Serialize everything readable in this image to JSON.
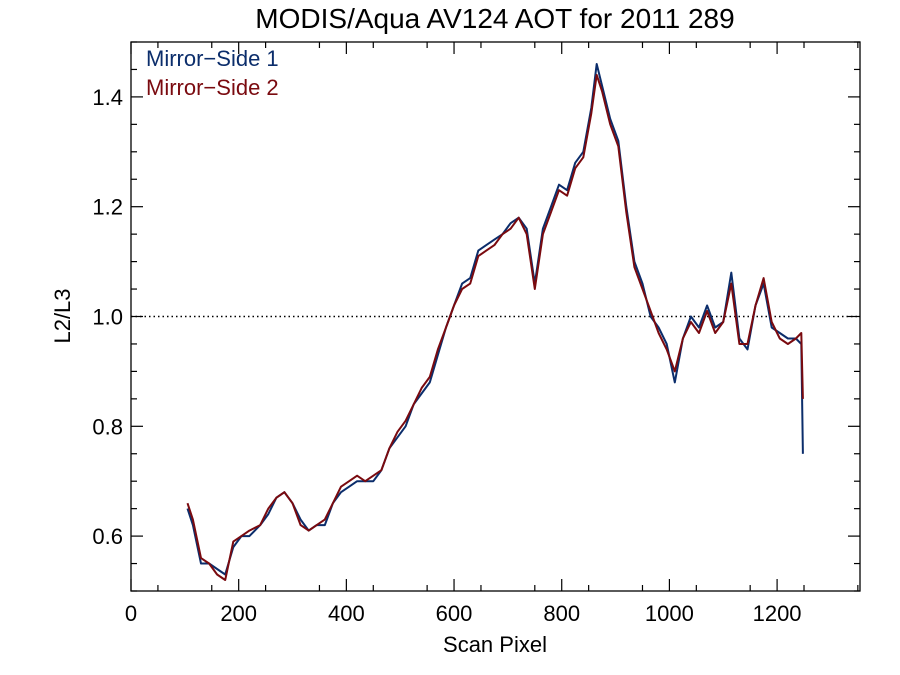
{
  "chart_data": {
    "type": "line",
    "title": "MODIS/Aqua AV124 AOT for 2011 289",
    "xlabel": "Scan Pixel",
    "ylabel": "L2/L3",
    "xlim": [
      0,
      1354
    ],
    "ylim": [
      0.5,
      1.5
    ],
    "xticks": [
      0,
      200,
      400,
      600,
      800,
      1000,
      1200
    ],
    "yticks": [
      0.6,
      0.8,
      1.0,
      1.2,
      1.4
    ],
    "reference_line": {
      "y": 1.0,
      "style": "dotted"
    },
    "legend_position": "top-left",
    "colors": {
      "mirror_side_1": "#0b2d6b",
      "mirror_side_2": "#7a0a0f"
    },
    "x": [
      105,
      115,
      130,
      145,
      160,
      175,
      190,
      205,
      220,
      240,
      255,
      270,
      285,
      300,
      315,
      330,
      345,
      360,
      375,
      390,
      405,
      420,
      435,
      450,
      465,
      480,
      495,
      510,
      525,
      540,
      555,
      570,
      585,
      600,
      615,
      630,
      645,
      660,
      675,
      690,
      705,
      720,
      735,
      750,
      765,
      780,
      795,
      810,
      825,
      840,
      855,
      865,
      875,
      890,
      905,
      920,
      935,
      950,
      965,
      980,
      995,
      1010,
      1025,
      1040,
      1055,
      1070,
      1085,
      1100,
      1115,
      1130,
      1145,
      1160,
      1175,
      1190,
      1205,
      1220,
      1235,
      1245,
      1248
    ],
    "series": [
      {
        "name": "Mirror-Side 1",
        "values": [
          0.65,
          0.62,
          0.55,
          0.55,
          0.54,
          0.53,
          0.58,
          0.6,
          0.6,
          0.62,
          0.64,
          0.67,
          0.68,
          0.66,
          0.63,
          0.61,
          0.62,
          0.62,
          0.66,
          0.68,
          0.69,
          0.7,
          0.7,
          0.7,
          0.72,
          0.76,
          0.78,
          0.8,
          0.84,
          0.86,
          0.88,
          0.93,
          0.98,
          1.02,
          1.06,
          1.07,
          1.12,
          1.13,
          1.14,
          1.15,
          1.17,
          1.18,
          1.16,
          1.06,
          1.16,
          1.2,
          1.24,
          1.23,
          1.28,
          1.3,
          1.38,
          1.46,
          1.42,
          1.36,
          1.32,
          1.2,
          1.1,
          1.06,
          1.0,
          0.98,
          0.95,
          0.88,
          0.96,
          1.0,
          0.98,
          1.02,
          0.98,
          0.99,
          1.08,
          0.96,
          0.94,
          1.02,
          1.06,
          0.98,
          0.97,
          0.96,
          0.96,
          0.95,
          0.75
        ]
      },
      {
        "name": "Mirror-Side 2",
        "values": [
          0.66,
          0.63,
          0.56,
          0.55,
          0.53,
          0.52,
          0.59,
          0.6,
          0.61,
          0.62,
          0.65,
          0.67,
          0.68,
          0.66,
          0.62,
          0.61,
          0.62,
          0.63,
          0.66,
          0.69,
          0.7,
          0.71,
          0.7,
          0.71,
          0.72,
          0.76,
          0.79,
          0.81,
          0.84,
          0.87,
          0.89,
          0.94,
          0.98,
          1.02,
          1.05,
          1.06,
          1.11,
          1.12,
          1.13,
          1.15,
          1.16,
          1.18,
          1.15,
          1.05,
          1.15,
          1.19,
          1.23,
          1.22,
          1.27,
          1.29,
          1.37,
          1.44,
          1.41,
          1.35,
          1.31,
          1.19,
          1.09,
          1.05,
          1.01,
          0.97,
          0.94,
          0.9,
          0.96,
          0.99,
          0.97,
          1.01,
          0.97,
          0.99,
          1.06,
          0.95,
          0.95,
          1.02,
          1.07,
          0.99,
          0.96,
          0.95,
          0.96,
          0.97,
          0.85
        ]
      }
    ]
  },
  "title": "MODIS/Aqua AV124 AOT for 2011 289",
  "xlabel": "Scan Pixel",
  "ylabel": "L2/L3",
  "legend": [
    {
      "label": "Mirror−Side 1",
      "color": "#0b2d6b"
    },
    {
      "label": "Mirror−Side 2",
      "color": "#7a0a0f"
    }
  ]
}
